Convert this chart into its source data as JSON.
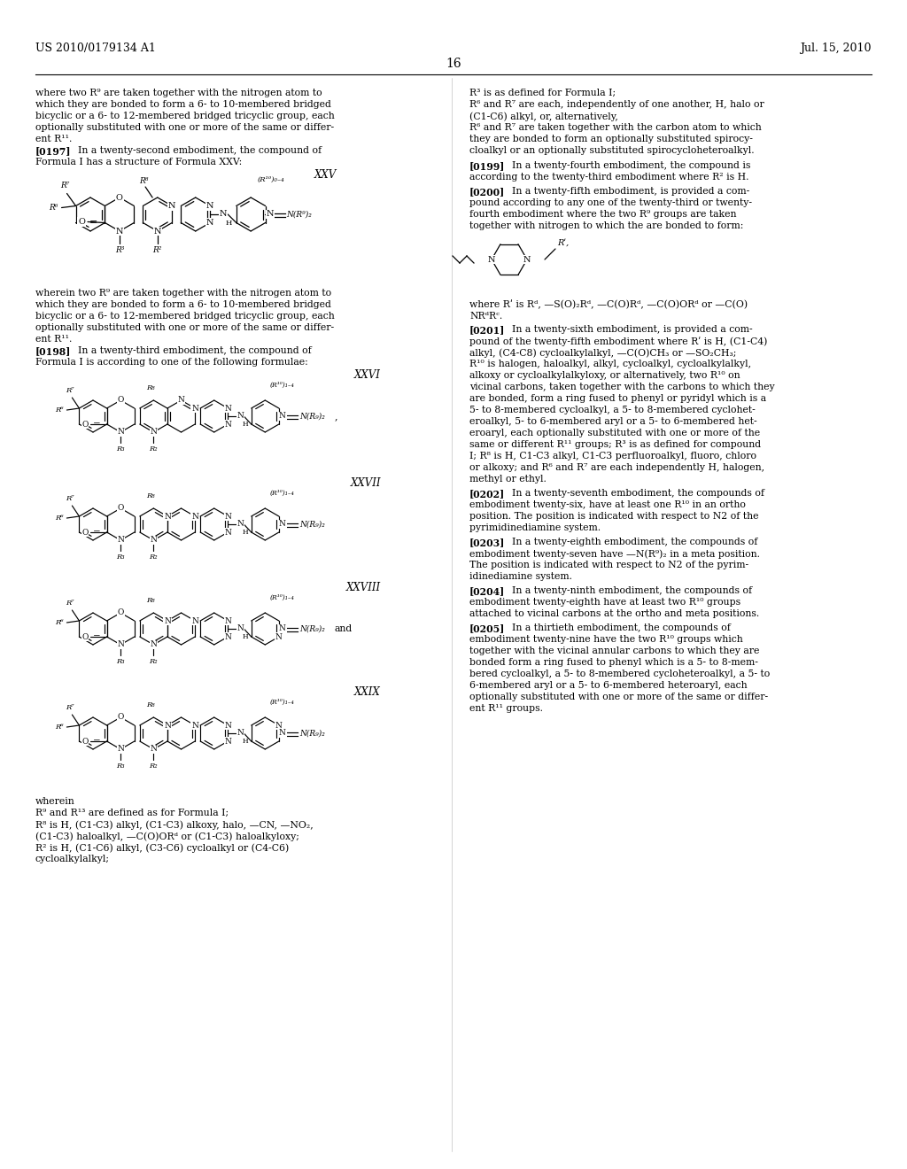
{
  "page_number": "16",
  "patent_number": "US 2010/0179134 A1",
  "patent_date": "Jul. 15, 2010",
  "bg": "#ffffff",
  "body_fs": 7.8,
  "serif": "DejaVu Serif"
}
